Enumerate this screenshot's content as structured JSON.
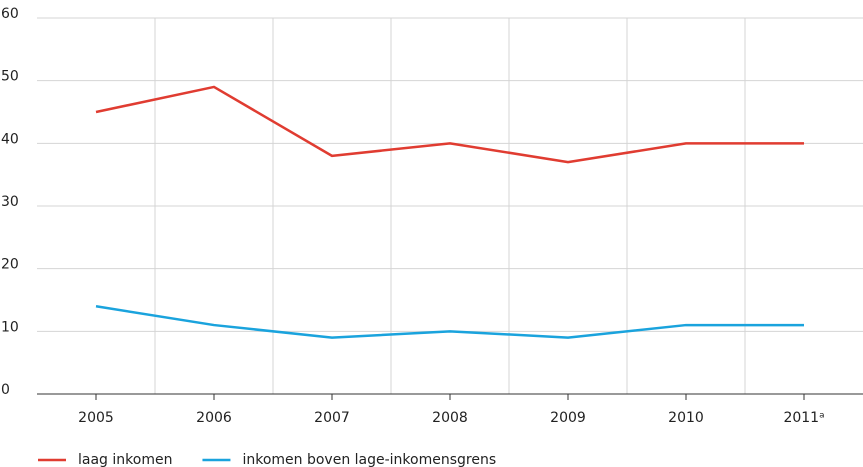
{
  "chart_data": {
    "type": "line",
    "categories": [
      "2005",
      "2006",
      "2007",
      "2008",
      "2009",
      "2010",
      "2011ᵃ"
    ],
    "series": [
      {
        "name": "laag inkomen",
        "color": "#e03c31",
        "values": [
          45,
          49,
          38,
          40,
          37,
          40,
          40
        ]
      },
      {
        "name": "inkomen boven lage-inkomensgrens",
        "color": "#1aa3dd",
        "values": [
          14,
          11,
          9,
          10,
          9,
          11,
          11
        ]
      }
    ],
    "ylim": [
      0,
      60
    ],
    "yticks": [
      0,
      10,
      20,
      30,
      40,
      50,
      60
    ],
    "grid": true,
    "legend": "bottom"
  }
}
